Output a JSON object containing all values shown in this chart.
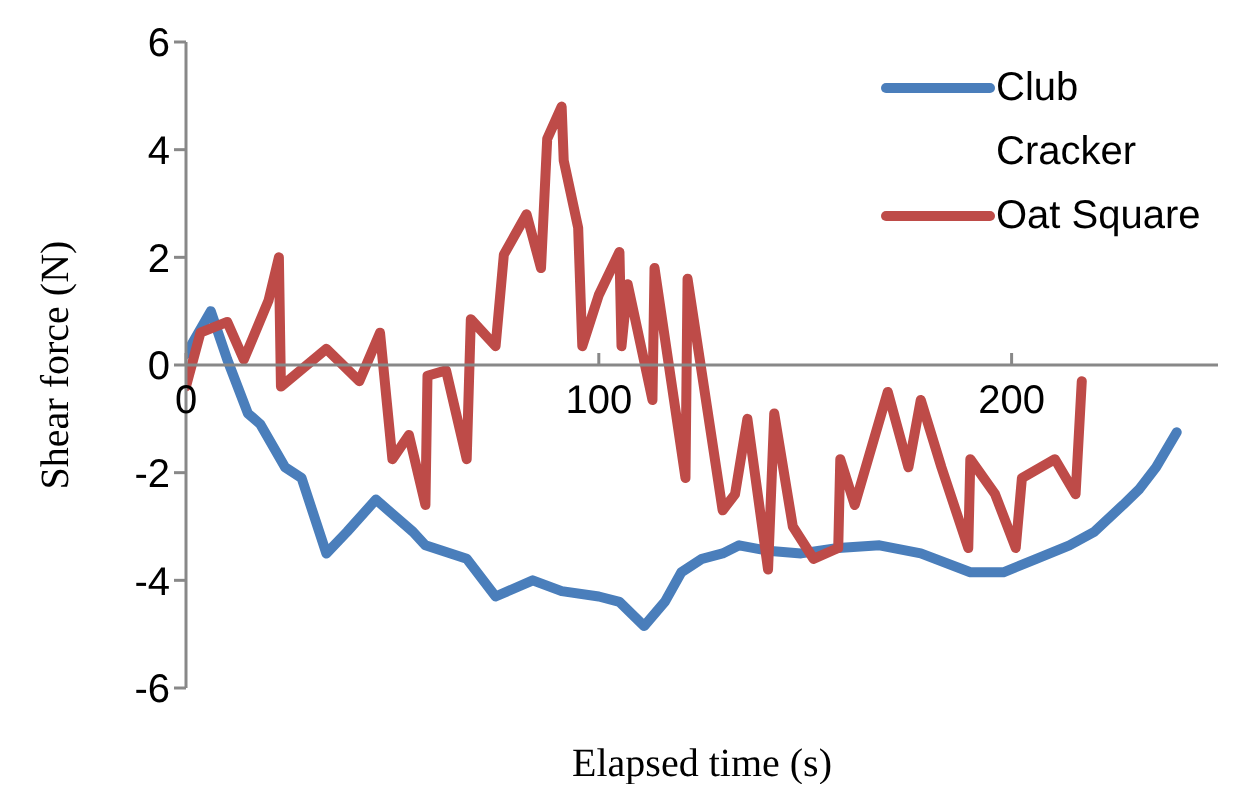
{
  "chart_data": {
    "type": "line",
    "xlabel": "Elapsed time (s)",
    "ylabel": "Shear force (N)",
    "xlim": [
      0,
      250
    ],
    "xticks": [
      0,
      100,
      200
    ],
    "ylim": [
      -6,
      6
    ],
    "yticks": [
      -6,
      -4,
      -2,
      0,
      2,
      4,
      6
    ],
    "grid": false,
    "legend": "top right",
    "marker": "none",
    "line_style": "solid",
    "series": [
      {
        "name": "Club Cracker",
        "color": "#4a7ebb",
        "x": [
          0,
          6,
          10,
          15,
          18,
          24,
          28,
          34,
          39,
          46,
          55,
          58,
          68,
          75,
          84,
          91,
          100,
          105,
          111,
          116,
          120,
          125,
          130,
          134,
          141,
          149,
          158,
          168,
          178,
          190,
          198,
          206,
          214,
          220,
          227,
          231,
          235,
          240
        ],
        "values": [
          0.2,
          1.0,
          0.1,
          -0.9,
          -1.1,
          -1.9,
          -2.1,
          -3.5,
          -3.1,
          -2.5,
          -3.1,
          -3.35,
          -3.6,
          -4.3,
          -4.0,
          -4.2,
          -4.3,
          -4.4,
          -4.85,
          -4.4,
          -3.85,
          -3.6,
          -3.5,
          -3.35,
          -3.45,
          -3.5,
          -3.4,
          -3.35,
          -3.5,
          -3.85,
          -3.85,
          -3.6,
          -3.35,
          -3.1,
          -2.6,
          -2.3,
          -1.9,
          -1.25
        ]
      },
      {
        "name": "Oat Square",
        "color": "#be4b48",
        "x": [
          0,
          3.5,
          10,
          14,
          20,
          22.5,
          23,
          34,
          42,
          47,
          50,
          54,
          58,
          58.5,
          63,
          68,
          69,
          75,
          77,
          82.5,
          86,
          87.5,
          91,
          91.5,
          95,
          96,
          100,
          105,
          105.5,
          107,
          113,
          113.5,
          121,
          121.5,
          130,
          133,
          136,
          141,
          142.5,
          147,
          152,
          158,
          158.5,
          162,
          170,
          175,
          178,
          183,
          189.5,
          190,
          196,
          201,
          202.5,
          210.5,
          215.5,
          217
        ],
        "values": [
          -0.4,
          0.6,
          0.8,
          0.1,
          1.2,
          2.0,
          -0.4,
          0.3,
          -0.3,
          0.6,
          -1.75,
          -1.3,
          -2.6,
          -0.2,
          -0.1,
          -1.75,
          0.85,
          0.35,
          2.05,
          2.8,
          1.8,
          4.2,
          4.8,
          3.8,
          2.55,
          0.35,
          1.3,
          2.1,
          0.35,
          1.5,
          -0.65,
          1.8,
          -2.1,
          1.6,
          -2.7,
          -2.4,
          -1.0,
          -3.8,
          -0.9,
          -3.0,
          -3.6,
          -3.4,
          -1.75,
          -2.6,
          -0.5,
          -1.9,
          -0.65,
          -1.9,
          -3.4,
          -1.75,
          -2.4,
          -3.4,
          -2.1,
          -1.75,
          -2.4,
          -0.3
        ]
      }
    ]
  }
}
